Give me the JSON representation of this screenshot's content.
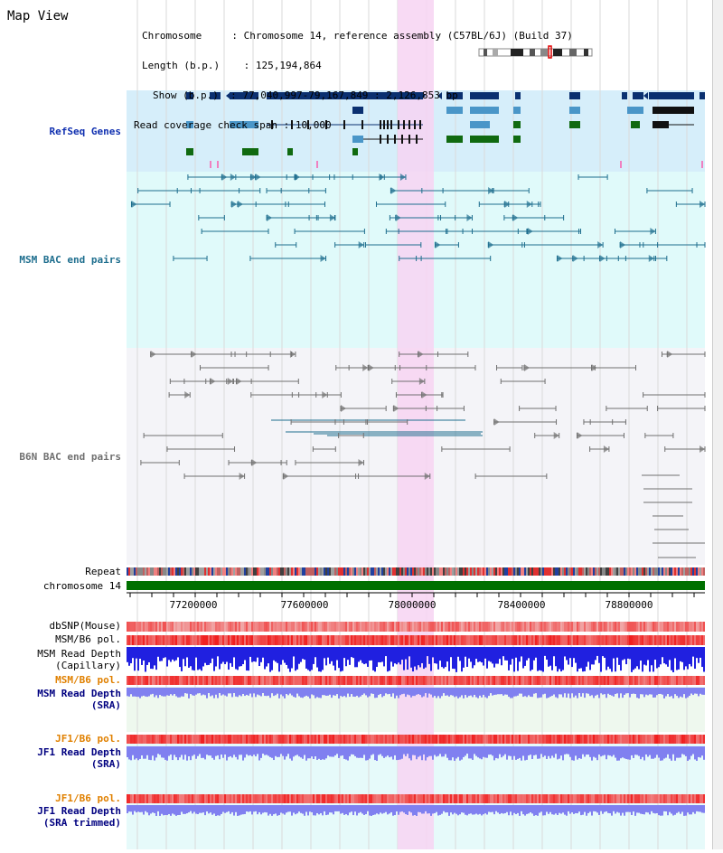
{
  "view_title": "Map View",
  "header": {
    "chromosome_key": "Chromosome    ",
    "chromosome_val": "Chromosome 14, reference assembly (C57BL/6J) (Build 37)",
    "length_key": "Length (b.p.)",
    "length_val": "125,194,864",
    "show_key": "Show (b.p.)",
    "show_val": "77,040,997-79,167,849 : 2,126,853 bp",
    "coverage_key": "Read coverage check span",
    "coverage_val": "10,000"
  },
  "tracks": {
    "refseq_genes": "RefSeq Genes",
    "msm_bac": "MSM BAC end pairs",
    "b6n_bac": "B6N BAC end pairs",
    "repeat": "Repeat",
    "chromosome": "chromosome 14",
    "dbsnp": "dbSNP(Mouse)",
    "msm_b6_pol_1": "MSM/B6 pol.",
    "msm_read_depth_cap_1": "MSM Read Depth",
    "msm_read_depth_cap_2": "(Capillary)",
    "msm_b6_pol_2": "MSM/B6 pol.",
    "msm_read_depth_sra_1": "MSM Read Depth",
    "msm_read_depth_sra_2": "(SRA)",
    "jf1_b6_pol_1": "JF1/B6 pol.",
    "jf1_read_depth_sra_1": "JF1 Read Depth",
    "jf1_read_depth_sra_2": "(SRA)",
    "jf1_b6_pol_2": "JF1/B6 pol.",
    "jf1_read_depth_trim_1": "JF1 Read Depth",
    "jf1_read_depth_trim_2": "(SRA trimmed)"
  },
  "axis_ticks": [
    "77200000",
    "77600000",
    "78000000",
    "78400000",
    "78800000"
  ],
  "colors": {
    "refseq_bg": "#d6eefa",
    "msm_bg": "#e0fafa",
    "b6n_bg": "#f4f4f8",
    "highlight": "#f7d4f2",
    "dark_blue": "#0b3070",
    "mid_blue": "#4a96c8",
    "green": "#106a10",
    "msm_bac": "#1e6e8e",
    "b6n_bac": "#707070",
    "snp_red": "#f06060",
    "depth_blue": "#2020e0",
    "depth_light": "#8080f0",
    "pol_label": "#e08000",
    "depth_label": "#000080"
  }
}
